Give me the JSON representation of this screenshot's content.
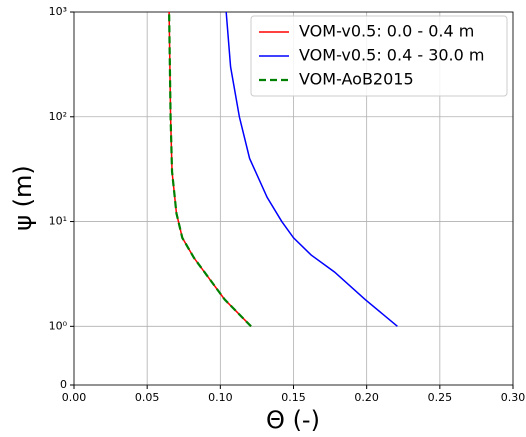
{
  "chart_data": {
    "type": "line",
    "xlabel": "Θ (-)",
    "ylabel": "ψ (m)",
    "xlim": [
      0,
      0.3
    ],
    "xticks": [
      {
        "value": 0,
        "label": "0.00"
      },
      {
        "value": 0.05,
        "label": "0.05"
      },
      {
        "value": 0.1,
        "label": "0.10"
      },
      {
        "value": 0.15,
        "label": "0.15"
      },
      {
        "value": 0.2,
        "label": "0.20"
      },
      {
        "value": 0.25,
        "label": "0.25"
      },
      {
        "value": 0.3,
        "label": "0.30"
      }
    ],
    "ylim": [
      0,
      1000
    ],
    "yscale": "symlog",
    "linthresh": 1,
    "yticks": [
      0,
      {
        "value": 1,
        "label": "10⁰"
      },
      {
        "value": 10,
        "label": "10¹"
      },
      {
        "value": 100,
        "label": "10²"
      },
      {
        "value": 1000,
        "label": "10³"
      }
    ],
    "grid": true,
    "legend": "upper right",
    "series": [
      {
        "name": "VOM-v0.5: 0.0 - 0.4 m",
        "color": "#ff0000",
        "linestyle": "solid",
        "x": [
          0.121,
          0.103,
          0.082,
          0.074,
          0.07,
          0.067,
          0.066,
          0.065
        ],
        "values": [
          1,
          1.8,
          4.5,
          7,
          12,
          30,
          100,
          1000
        ]
      },
      {
        "name": "VOM-v0.5: 0.4 - 30.0 m",
        "color": "#0000ff",
        "linestyle": "solid",
        "x": [
          0.221,
          0.199,
          0.178,
          0.162,
          0.15,
          0.142,
          0.132,
          0.12,
          0.113,
          0.107,
          0.104
        ],
        "values": [
          1,
          1.8,
          3.3,
          4.8,
          7,
          10,
          17,
          40,
          100,
          300,
          1000
        ]
      },
      {
        "name": "VOM-AoB2015",
        "color": "#008000",
        "linestyle": "dashed",
        "x": [
          0.121,
          0.103,
          0.082,
          0.074,
          0.07,
          0.067,
          0.066,
          0.065
        ],
        "values": [
          1,
          1.8,
          4.5,
          7,
          12,
          30,
          100,
          1000
        ]
      }
    ]
  }
}
